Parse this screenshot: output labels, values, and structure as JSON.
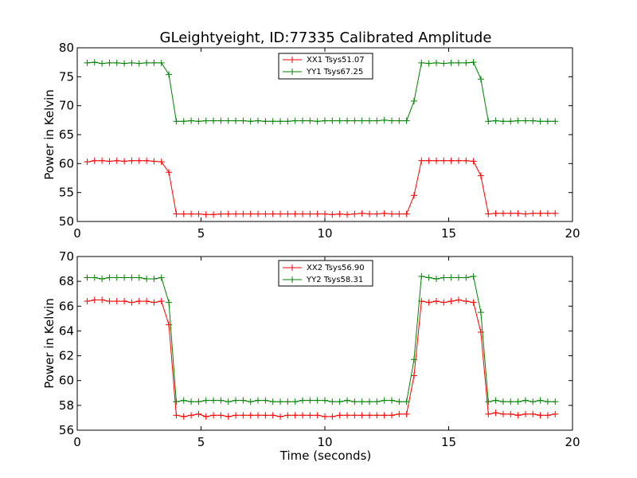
{
  "chart_data": [
    {
      "type": "line",
      "title": "GLeightyeight, ID:77335 Calibrated Amplitude",
      "xlabel": "",
      "ylabel": "Power in Kelvin",
      "xlim": [
        0,
        20
      ],
      "ylim": [
        50,
        80
      ],
      "xticks": [
        0,
        5,
        10,
        15,
        20
      ],
      "yticks": [
        50,
        55,
        60,
        65,
        70,
        75,
        80
      ],
      "grid": false,
      "legend_position": "top-center",
      "x": [
        0.4,
        0.7,
        1.0,
        1.3,
        1.6,
        1.9,
        2.2,
        2.5,
        2.8,
        3.1,
        3.4,
        3.7,
        4.0,
        4.3,
        4.6,
        4.9,
        5.2,
        5.5,
        5.8,
        6.1,
        6.4,
        6.7,
        7.0,
        7.3,
        7.6,
        7.9,
        8.2,
        8.5,
        8.8,
        9.1,
        9.4,
        9.7,
        10.0,
        10.3,
        10.6,
        10.9,
        11.2,
        11.5,
        11.8,
        12.1,
        12.4,
        12.7,
        13.0,
        13.3,
        13.6,
        13.9,
        14.2,
        14.5,
        14.8,
        15.1,
        15.4,
        15.7,
        16.0,
        16.3,
        16.6,
        16.9,
        17.2,
        17.5,
        17.8,
        18.1,
        18.4,
        18.7,
        19.0,
        19.3
      ],
      "series": [
        {
          "name": "XX1 Tsys51.07",
          "color": "#ff0000",
          "values": [
            60.3,
            60.5,
            60.5,
            60.4,
            60.5,
            60.4,
            60.5,
            60.5,
            60.5,
            60.4,
            60.3,
            58.5,
            51.3,
            51.3,
            51.3,
            51.3,
            51.2,
            51.2,
            51.3,
            51.3,
            51.3,
            51.3,
            51.3,
            51.3,
            51.3,
            51.3,
            51.3,
            51.3,
            51.3,
            51.3,
            51.3,
            51.3,
            51.3,
            51.2,
            51.3,
            51.2,
            51.3,
            51.4,
            51.3,
            51.3,
            51.4,
            51.3,
            51.3,
            51.3,
            54.5,
            60.5,
            60.5,
            60.5,
            60.5,
            60.5,
            60.5,
            60.5,
            60.4,
            57.9,
            51.3,
            51.4,
            51.4,
            51.4,
            51.4,
            51.3,
            51.4,
            51.4,
            51.4,
            51.4
          ]
        },
        {
          "name": "YY1 Tsys67.25",
          "color": "#008000",
          "values": [
            77.4,
            77.5,
            77.3,
            77.4,
            77.4,
            77.3,
            77.4,
            77.3,
            77.4,
            77.4,
            77.4,
            75.4,
            67.3,
            67.3,
            67.4,
            67.3,
            67.4,
            67.4,
            67.4,
            67.4,
            67.4,
            67.4,
            67.3,
            67.4,
            67.3,
            67.3,
            67.3,
            67.3,
            67.4,
            67.4,
            67.4,
            67.3,
            67.4,
            67.4,
            67.4,
            67.4,
            67.4,
            67.4,
            67.4,
            67.4,
            67.5,
            67.4,
            67.4,
            67.4,
            70.8,
            77.4,
            77.3,
            77.4,
            77.3,
            77.4,
            77.4,
            77.4,
            77.5,
            74.6,
            67.3,
            67.4,
            67.3,
            67.3,
            67.4,
            67.4,
            67.4,
            67.3,
            67.3,
            67.3
          ]
        }
      ]
    },
    {
      "type": "line",
      "title": "",
      "xlabel": "Time (seconds)",
      "ylabel": "Power in Kelvin",
      "xlim": [
        0,
        20
      ],
      "ylim": [
        56,
        70
      ],
      "xticks": [
        0,
        5,
        10,
        15,
        20
      ],
      "yticks": [
        56,
        58,
        60,
        62,
        64,
        66,
        68,
        70
      ],
      "grid": false,
      "legend_position": "top-center",
      "x": [
        0.4,
        0.7,
        1.0,
        1.3,
        1.6,
        1.9,
        2.2,
        2.5,
        2.8,
        3.1,
        3.4,
        3.7,
        4.0,
        4.3,
        4.6,
        4.9,
        5.2,
        5.5,
        5.8,
        6.1,
        6.4,
        6.7,
        7.0,
        7.3,
        7.6,
        7.9,
        8.2,
        8.5,
        8.8,
        9.1,
        9.4,
        9.7,
        10.0,
        10.3,
        10.6,
        10.9,
        11.2,
        11.5,
        11.8,
        12.1,
        12.4,
        12.7,
        13.0,
        13.3,
        13.6,
        13.9,
        14.2,
        14.5,
        14.8,
        15.1,
        15.4,
        15.7,
        16.0,
        16.3,
        16.6,
        16.9,
        17.2,
        17.5,
        17.8,
        18.1,
        18.4,
        18.7,
        19.0,
        19.3
      ],
      "series": [
        {
          "name": "XX2 Tsys56.90",
          "color": "#ff0000",
          "values": [
            66.4,
            66.5,
            66.5,
            66.4,
            66.4,
            66.4,
            66.3,
            66.4,
            66.4,
            66.3,
            66.4,
            64.5,
            57.2,
            57.1,
            57.2,
            57.3,
            57.1,
            57.2,
            57.2,
            57.1,
            57.2,
            57.2,
            57.2,
            57.2,
            57.2,
            57.2,
            57.1,
            57.2,
            57.2,
            57.2,
            57.2,
            57.2,
            57.1,
            57.1,
            57.2,
            57.2,
            57.2,
            57.2,
            57.2,
            57.2,
            57.2,
            57.2,
            57.3,
            57.3,
            60.4,
            66.4,
            66.3,
            66.4,
            66.3,
            66.4,
            66.5,
            66.4,
            66.3,
            63.9,
            57.3,
            57.4,
            57.3,
            57.3,
            57.2,
            57.3,
            57.3,
            57.2,
            57.2,
            57.3
          ]
        },
        {
          "name": "YY2 Tsys58.31",
          "color": "#008000",
          "values": [
            68.3,
            68.3,
            68.2,
            68.3,
            68.3,
            68.3,
            68.3,
            68.3,
            68.2,
            68.2,
            68.3,
            66.3,
            58.3,
            58.4,
            58.3,
            58.3,
            58.4,
            58.4,
            58.4,
            58.3,
            58.4,
            58.4,
            58.3,
            58.4,
            58.4,
            58.3,
            58.3,
            58.3,
            58.3,
            58.4,
            58.4,
            58.4,
            58.4,
            58.3,
            58.3,
            58.4,
            58.3,
            58.3,
            58.3,
            58.3,
            58.4,
            58.4,
            58.3,
            58.3,
            61.7,
            68.4,
            68.3,
            68.2,
            68.3,
            68.3,
            68.3,
            68.3,
            68.4,
            65.5,
            58.3,
            58.4,
            58.3,
            58.3,
            58.3,
            58.4,
            58.3,
            58.4,
            58.3,
            58.3
          ]
        }
      ]
    }
  ]
}
